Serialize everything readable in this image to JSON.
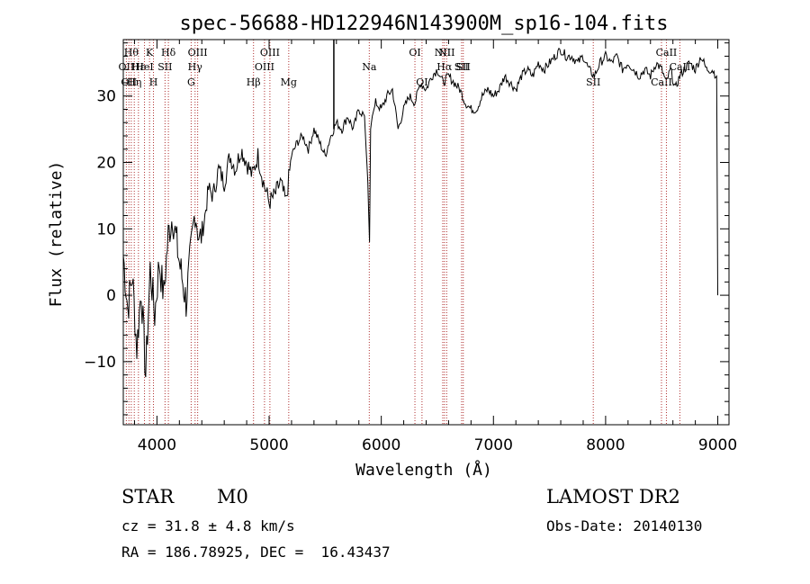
{
  "chart_data": {
    "type": "line",
    "title": "spec-56688-HD122946N143900M_sp16-104.fits",
    "xlabel": "Wavelength (Å)",
    "ylabel": "Flux (relative)",
    "xlim": [
      3700,
      9100
    ],
    "ylim": [
      -19.5,
      38.5
    ],
    "xticks": [
      4000,
      5000,
      6000,
      7000,
      8000,
      9000
    ],
    "yticks": [
      -10,
      0,
      10,
      20,
      30
    ],
    "series": [
      {
        "x": [
          3700,
          3740,
          3780,
          3820,
          3860,
          3900,
          3940,
          3980,
          4020,
          4060,
          4100,
          4140,
          4200,
          4260,
          4300,
          4340,
          4380,
          4420,
          4460,
          4500,
          4550,
          4600,
          4650,
          4700,
          4750,
          4800,
          4850,
          4900,
          4950,
          5000,
          5050,
          5100,
          5150,
          5200,
          5250,
          5300,
          5350,
          5400,
          5450,
          5500,
          5550,
          5600,
          5650,
          5700,
          5750,
          5800,
          5850,
          5880,
          5895,
          5905,
          5920,
          5950,
          6000,
          6050,
          6100,
          6150,
          6200,
          6250,
          6300,
          6350,
          6400,
          6450,
          6500,
          6550,
          6600,
          6650,
          6700,
          6750,
          6800,
          6850,
          6900,
          6950,
          7000,
          7050,
          7100,
          7150,
          7200,
          7250,
          7300,
          7350,
          7400,
          7450,
          7500,
          7550,
          7600,
          7650,
          7700,
          7750,
          7800,
          7850,
          7900,
          7950,
          8000,
          8050,
          8100,
          8150,
          8200,
          8250,
          8300,
          8350,
          8400,
          8450,
          8500,
          8540,
          8580,
          8620,
          8660,
          8700,
          8750,
          8800,
          8850,
          8900,
          8950,
          8990,
          9000
        ],
        "y": [
          6,
          -2,
          3,
          -8,
          1,
          -12,
          4,
          -3,
          5,
          0,
          9,
          12,
          5,
          -1,
          6,
          13,
          8,
          11,
          16,
          15,
          19,
          17,
          21,
          19,
          22,
          20,
          18,
          21,
          17,
          14,
          15,
          17,
          14,
          21,
          23,
          24,
          22,
          25,
          23,
          21,
          24,
          26,
          25,
          27,
          25,
          28,
          27,
          17,
          8,
          25,
          27,
          29,
          28,
          30,
          31,
          25,
          28,
          30,
          29,
          32,
          31,
          33,
          34,
          32,
          33,
          32,
          31,
          29,
          28,
          28,
          30,
          31,
          30,
          31,
          33,
          32,
          31,
          33,
          34,
          33,
          35,
          34,
          35,
          36,
          37,
          36,
          36,
          35,
          36,
          34,
          33,
          35,
          36,
          35,
          36,
          34,
          35,
          34,
          33,
          34,
          33,
          35,
          34,
          32,
          34,
          31,
          33,
          34,
          35,
          34,
          36,
          34,
          34,
          33,
          0
        ]
      }
    ],
    "vlines": [
      {
        "x": 3727,
        "label": "OII",
        "row": 2
      },
      {
        "x": 3750,
        "label": "OII",
        "row": 3
      },
      {
        "x": 3771,
        "label": "Hθ",
        "row": 1
      },
      {
        "x": 3798,
        "label": "Hη",
        "row": 3
      },
      {
        "x": 3835,
        "label": "Hε",
        "row": 2
      },
      {
        "x": 3889,
        "label": "HeI",
        "row": 2
      },
      {
        "x": 3934,
        "label": "K",
        "row": 1
      },
      {
        "x": 3969,
        "label": "H",
        "row": 3
      },
      {
        "x": 4072,
        "label": "SII",
        "row": 2
      },
      {
        "x": 4102,
        "label": "Hδ",
        "row": 1
      },
      {
        "x": 4305,
        "label": "G",
        "row": 3
      },
      {
        "x": 4340,
        "label": "Hγ",
        "row": 2
      },
      {
        "x": 4363,
        "label": "OIII",
        "row": 1
      },
      {
        "x": 4861,
        "label": "Hβ",
        "row": 3
      },
      {
        "x": 4959,
        "label": "OIII",
        "row": 2
      },
      {
        "x": 5007,
        "label": "OIII",
        "row": 1
      },
      {
        "x": 5175,
        "label": "Mg",
        "row": 3
      },
      {
        "x": 5893,
        "label": "Na",
        "row": 2
      },
      {
        "x": 6300,
        "label": "OI",
        "row": 1
      },
      {
        "x": 6363,
        "label": "OI",
        "row": 3
      },
      {
        "x": 6548,
        "label": "NII",
        "row": 1
      },
      {
        "x": 6563,
        "label": "Hα",
        "row": 2
      },
      {
        "x": 6583,
        "label": "NII",
        "row": 1
      },
      {
        "x": 6716,
        "label": "SII",
        "row": 2
      },
      {
        "x": 6731,
        "label": "SII",
        "row": 2
      },
      {
        "x": 7890,
        "label": "SII",
        "row": 3
      },
      {
        "x": 8498,
        "label": "CaII",
        "row": 3
      },
      {
        "x": 8542,
        "label": "CaII",
        "row": 1
      },
      {
        "x": 8662,
        "label": "CaII",
        "row": 2
      }
    ],
    "extra_vline_x": 5577,
    "colors": {
      "line": "#000000",
      "vline": "#b03030"
    }
  },
  "info": {
    "class": "STAR",
    "subclass": "M0",
    "survey": "LAMOST DR2",
    "cz": "cz = 31.8 ± 4.8 km/s",
    "obs_date": "Obs-Date: 20140130",
    "coords": "RA = 186.78925, DEC =  16.43437"
  }
}
